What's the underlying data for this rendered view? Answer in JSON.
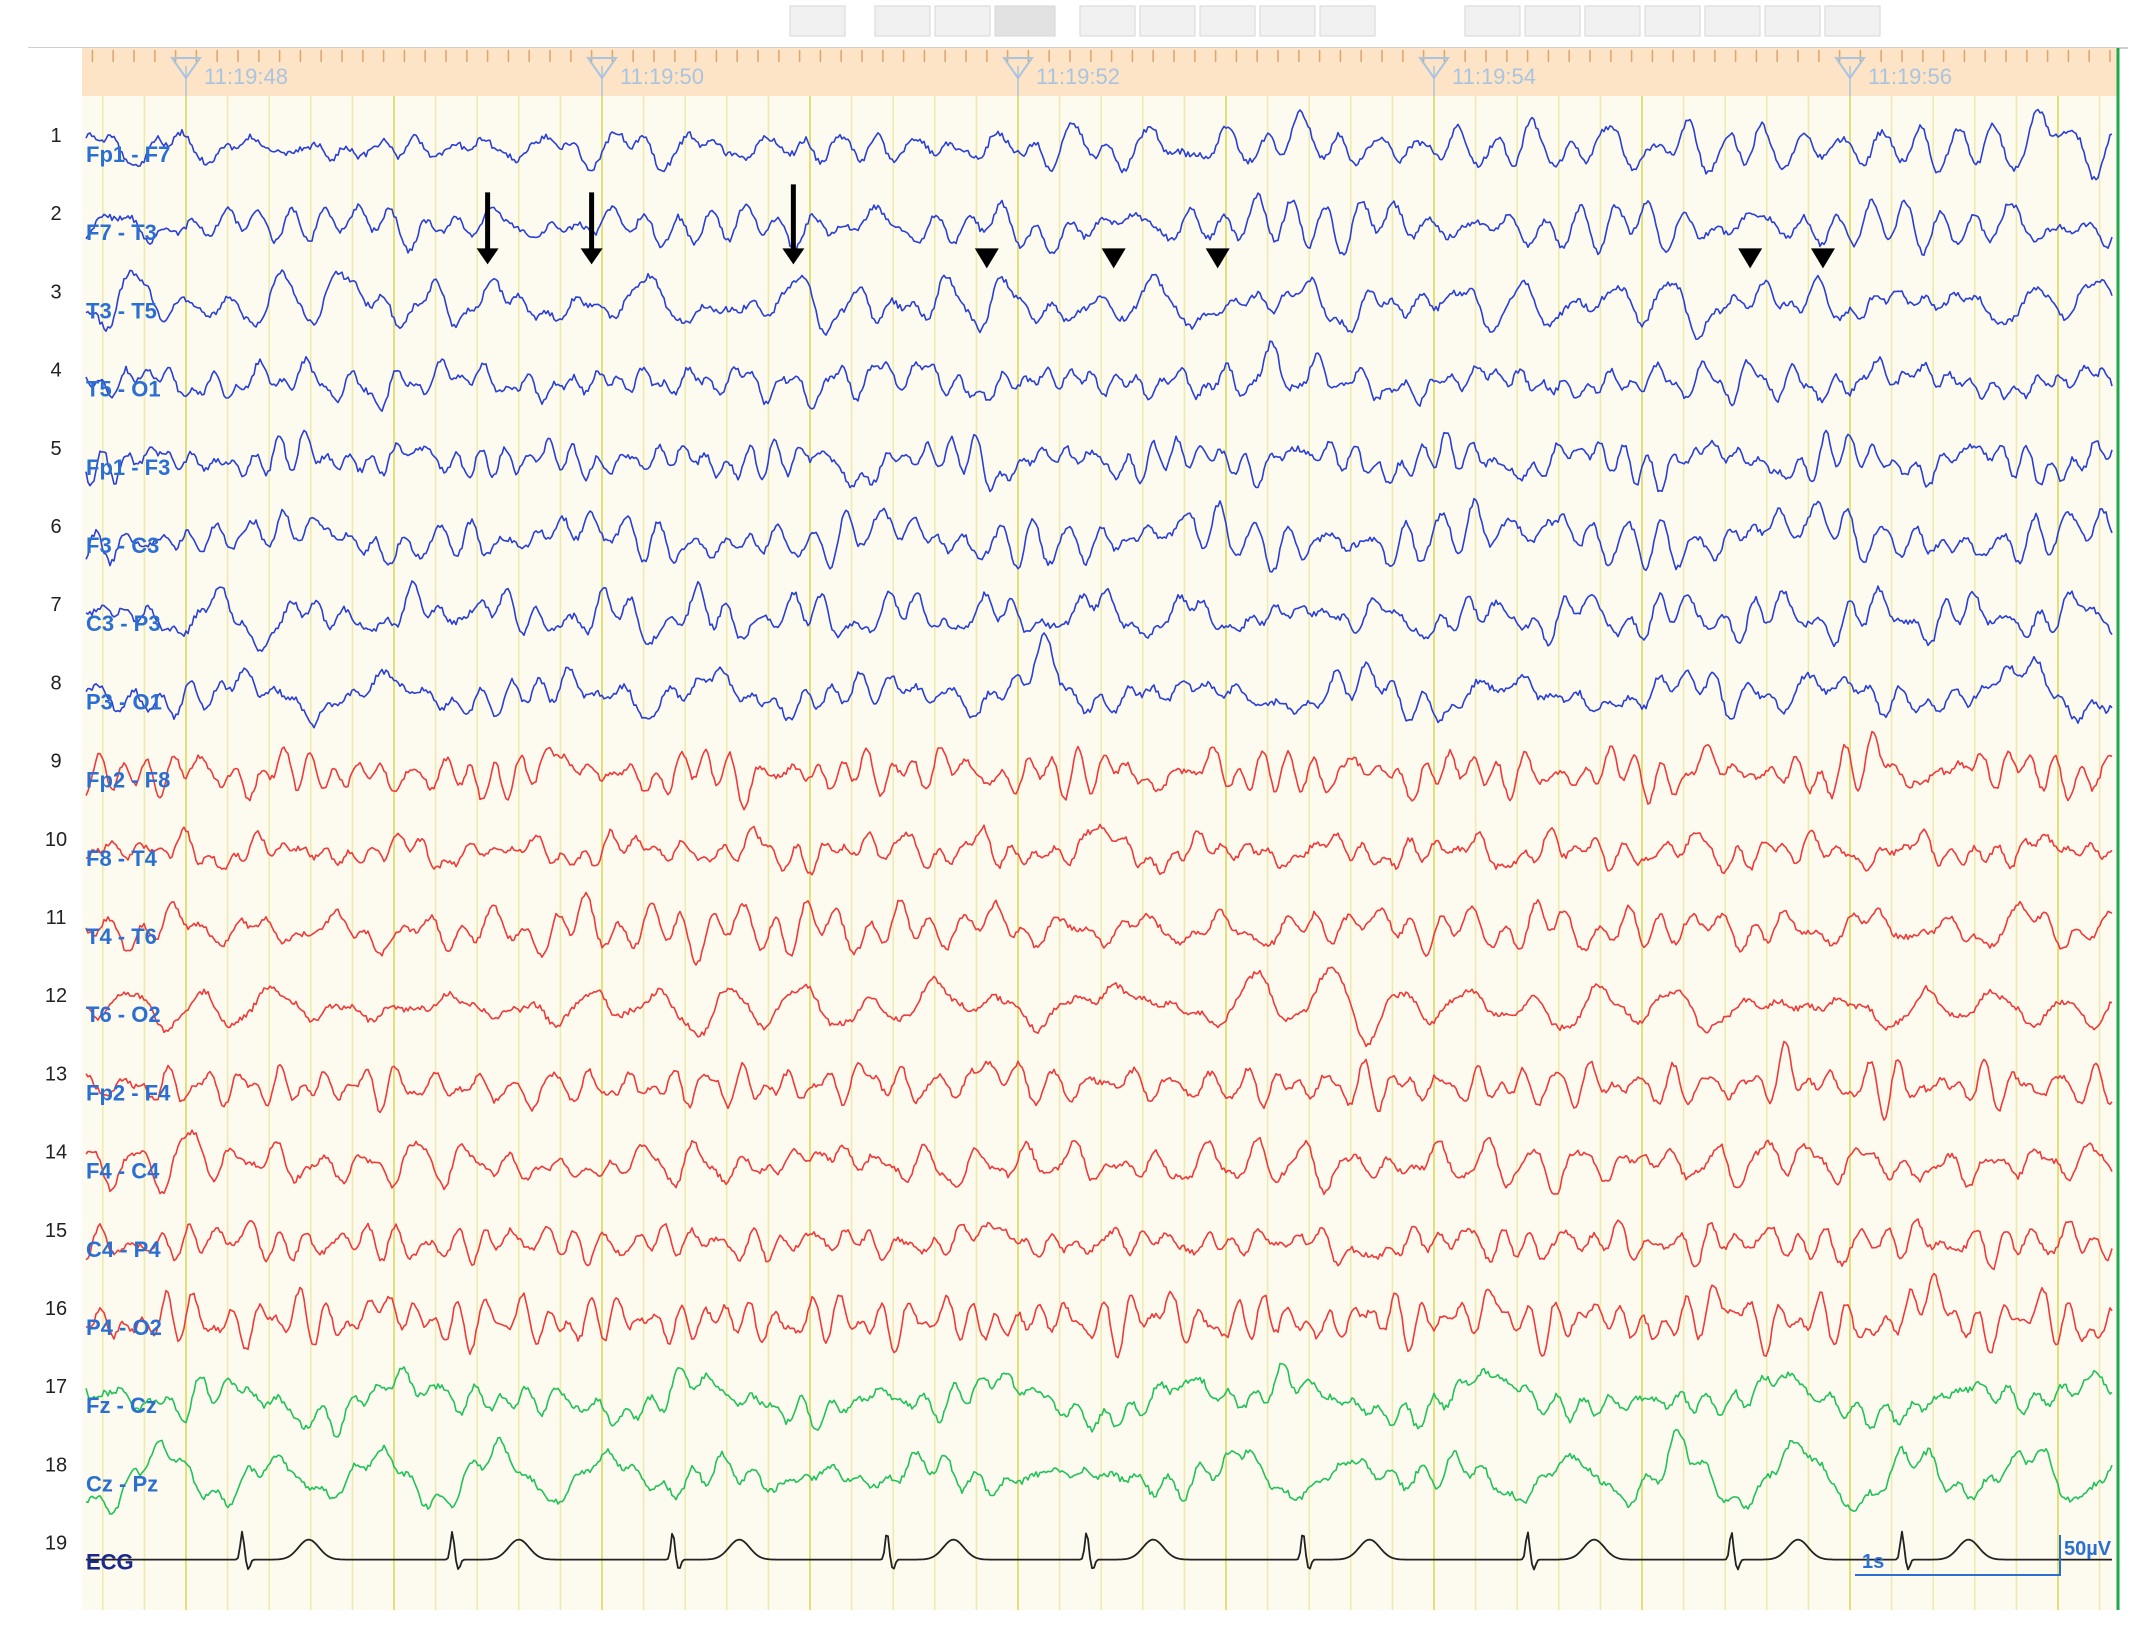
{
  "colors": {
    "background": "#fdfbef",
    "time_bar": "#fde4c7",
    "grid_second": "#e3e07a",
    "grid_minor": "#efeaa9",
    "left_group": "#2a3fd6",
    "right_group": "#ef3a3a",
    "midline_group": "#22c25a",
    "ecg": "#222222",
    "label_blue": "#2a6fd1",
    "label_ecg": "#1a2a8a",
    "marker": "#000000",
    "time_marker": "#a9c4e0",
    "end_line": "#1fa84a"
  },
  "chart_data": {
    "type": "line",
    "title": "",
    "xlabel": "",
    "ylabel": "",
    "time_axis": {
      "start": "11:19:47.5",
      "end": "11:19:57.3",
      "tick_labels": [
        "11:19:48",
        "11:19:50",
        "11:19:52",
        "11:19:54",
        "11:19:56"
      ],
      "tick_seconds": [
        48,
        50,
        52,
        54,
        56
      ]
    },
    "calibration": {
      "time": "1s",
      "amplitude": "50µV"
    },
    "channels": [
      {
        "number": "1",
        "label": "Fp1 - F7",
        "group": "left"
      },
      {
        "number": "2",
        "label": "F7 - T3",
        "group": "left"
      },
      {
        "number": "3",
        "label": "T3 - T5",
        "group": "left"
      },
      {
        "number": "4",
        "label": "T5 - O1",
        "group": "left"
      },
      {
        "number": "5",
        "label": "Fp1 - F3",
        "group": "left"
      },
      {
        "number": "6",
        "label": "F3 - C3",
        "group": "left"
      },
      {
        "number": "7",
        "label": "C3 - P3",
        "group": "left"
      },
      {
        "number": "8",
        "label": "P3 - O1",
        "group": "left"
      },
      {
        "number": "9",
        "label": "Fp2 - F8",
        "group": "right"
      },
      {
        "number": "10",
        "label": "F8 - T4",
        "group": "right"
      },
      {
        "number": "11",
        "label": "T4 - T6",
        "group": "right"
      },
      {
        "number": "12",
        "label": "T6 - O2",
        "group": "right"
      },
      {
        "number": "13",
        "label": "Fp2 - F4",
        "group": "right"
      },
      {
        "number": "14",
        "label": "F4 - C4",
        "group": "right"
      },
      {
        "number": "15",
        "label": "C4 - P4",
        "group": "right"
      },
      {
        "number": "16",
        "label": "P4 - O2",
        "group": "right"
      },
      {
        "number": "17",
        "label": "Fz - Cz",
        "group": "midline"
      },
      {
        "number": "18",
        "label": "Cz - Pz",
        "group": "midline"
      },
      {
        "number": "19",
        "label": "ECG",
        "group": "ecg"
      }
    ],
    "spike_markers": {
      "channel": "3",
      "arrows_at_seconds": [
        49.45,
        49.95,
        50.92
      ],
      "arrowheads_at_seconds": [
        51.85,
        52.46,
        52.96,
        55.52,
        55.87
      ]
    },
    "ecg_r_peaks_at_seconds": [
      48.27,
      49.28,
      50.34,
      51.37,
      52.33,
      53.37,
      54.45,
      55.43,
      56.25
    ]
  }
}
